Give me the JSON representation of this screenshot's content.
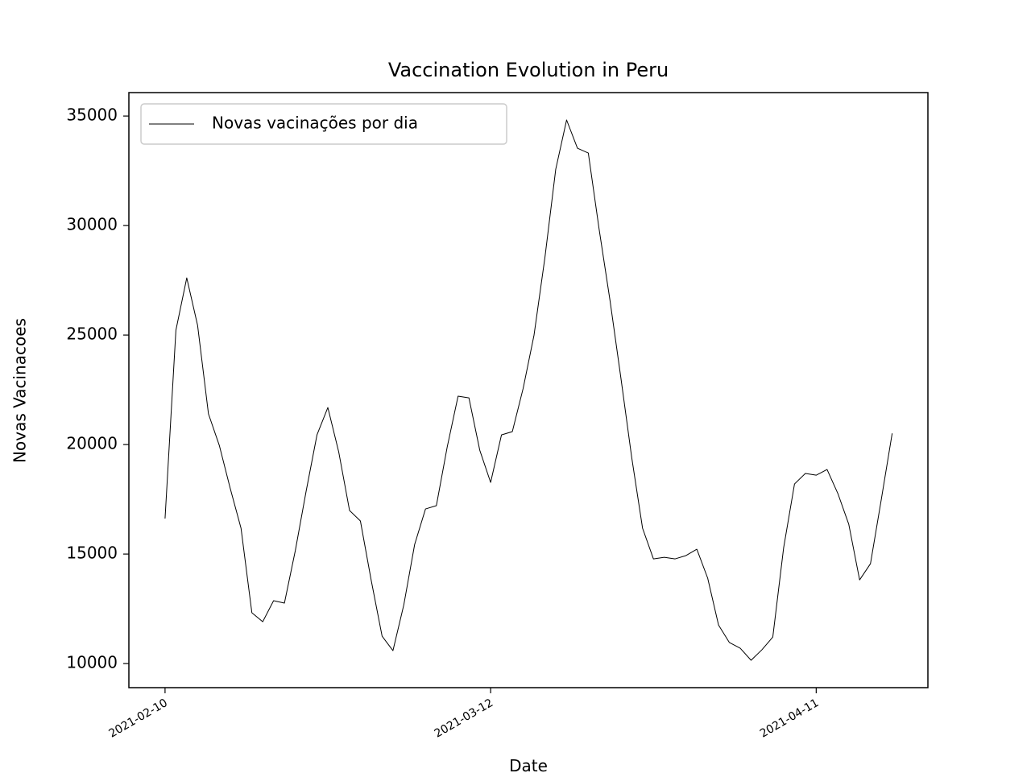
{
  "chart_data": {
    "type": "line",
    "title": "Vaccination Evolution in Peru",
    "xlabel": "Date",
    "ylabel": "Novas Vacinacoes",
    "x": [
      "2021-02-10",
      "2021-02-11",
      "2021-02-12",
      "2021-02-13",
      "2021-02-14",
      "2021-02-15",
      "2021-02-16",
      "2021-02-17",
      "2021-02-18",
      "2021-02-19",
      "2021-02-20",
      "2021-02-21",
      "2021-02-22",
      "2021-02-23",
      "2021-02-24",
      "2021-02-25",
      "2021-02-26",
      "2021-02-27",
      "2021-02-28",
      "2021-03-01",
      "2021-03-02",
      "2021-03-03",
      "2021-03-04",
      "2021-03-05",
      "2021-03-06",
      "2021-03-07",
      "2021-03-08",
      "2021-03-09",
      "2021-03-10",
      "2021-03-11",
      "2021-03-12",
      "2021-03-13",
      "2021-03-14",
      "2021-03-15",
      "2021-03-16",
      "2021-03-17",
      "2021-03-18",
      "2021-03-19",
      "2021-03-20",
      "2021-03-21",
      "2021-03-22",
      "2021-03-23",
      "2021-03-24",
      "2021-03-25",
      "2021-03-26",
      "2021-03-27",
      "2021-03-28",
      "2021-03-29",
      "2021-03-30",
      "2021-03-31",
      "2021-04-01",
      "2021-04-02",
      "2021-04-03",
      "2021-04-04",
      "2021-04-05",
      "2021-04-06",
      "2021-04-07",
      "2021-04-08",
      "2021-04-09",
      "2021-04-10",
      "2021-04-11",
      "2021-04-12",
      "2021-04-13",
      "2021-04-14",
      "2021-04-15",
      "2021-04-16",
      "2021-04-17",
      "2021-04-18"
    ],
    "series": [
      {
        "name": "Novas vacinações por dia",
        "color": "#000000",
        "values": [
          16620,
          25220,
          27610,
          25440,
          21400,
          19960,
          18010,
          16180,
          12320,
          11910,
          12870,
          12760,
          15150,
          17870,
          20440,
          21690,
          19670,
          16990,
          16510,
          13790,
          11250,
          10590,
          12680,
          15440,
          17060,
          17210,
          19890,
          22210,
          22130,
          19740,
          18270,
          20440,
          20590,
          22570,
          25000,
          28530,
          32570,
          34820,
          33530,
          33310,
          29820,
          26580,
          23050,
          19410,
          16180,
          14780,
          14850,
          14780,
          14930,
          15220,
          13900,
          11760,
          10960,
          10700,
          10150,
          10630,
          11210,
          15290,
          18200,
          18680,
          18600,
          18860,
          17760,
          16360,
          13820,
          14560,
          17500,
          20510
        ]
      }
    ],
    "xlim": [
      "2021-02-06T16:00",
      "2021-04-21T07:00"
    ],
    "xticks": [
      "2021-02-10",
      "2021-03-12",
      "2021-04-11"
    ],
    "ylim": [
      8900,
      36070
    ],
    "yticks": [
      10000,
      15000,
      20000,
      25000,
      30000,
      35000
    ],
    "legend": "upper left",
    "grid": false
  }
}
